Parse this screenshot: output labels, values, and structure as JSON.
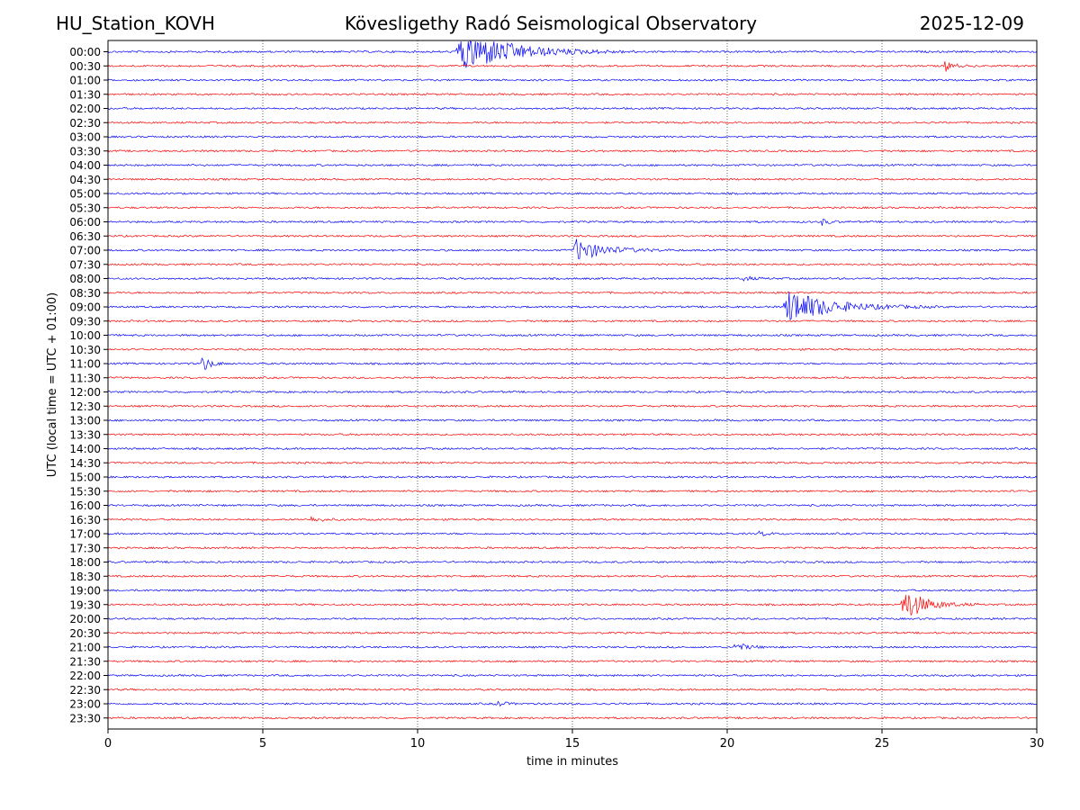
{
  "header": {
    "station": "HU_Station_KOVH",
    "title": "Kövesligethy Radó Seismological Observatory",
    "date": "2025-12-09"
  },
  "chart_data": {
    "type": "line",
    "title": "Kövesligethy Radó Seismological Observatory",
    "xlabel": "time in minutes",
    "ylabel": "UTC (local time = UTC + 01:00)",
    "xlim": [
      0,
      30
    ],
    "xticks": [
      0,
      5,
      10,
      15,
      20,
      25,
      30
    ],
    "grid": "vertical dotted lines at x ticks",
    "colors": [
      "#0000ff",
      "#ff0000"
    ],
    "rows": [
      "00:00",
      "00:30",
      "01:00",
      "01:30",
      "02:00",
      "02:30",
      "03:00",
      "03:30",
      "04:00",
      "04:30",
      "05:00",
      "05:30",
      "06:00",
      "06:30",
      "07:00",
      "07:30",
      "08:00",
      "08:30",
      "09:00",
      "09:30",
      "10:00",
      "10:30",
      "11:00",
      "11:30",
      "12:00",
      "12:30",
      "13:00",
      "13:30",
      "14:00",
      "14:30",
      "15:00",
      "15:30",
      "16:00",
      "16:30",
      "17:00",
      "17:30",
      "18:00",
      "18:30",
      "19:00",
      "19:30",
      "20:00",
      "20:30",
      "21:00",
      "21:30",
      "22:00",
      "22:30",
      "23:00",
      "23:30"
    ],
    "events": [
      {
        "row": 0,
        "start_min": 11.2,
        "peak": 1.0,
        "duration_min": 6.0
      },
      {
        "row": 1,
        "start_min": 27.0,
        "peak": 0.25,
        "duration_min": 1.0
      },
      {
        "row": 14,
        "start_min": 15.0,
        "peak": 0.5,
        "duration_min": 3.5
      },
      {
        "row": 18,
        "start_min": 21.8,
        "peak": 0.8,
        "duration_min": 5.0
      },
      {
        "row": 22,
        "start_min": 3.0,
        "peak": 0.4,
        "duration_min": 1.0
      },
      {
        "row": 39,
        "start_min": 25.6,
        "peak": 0.8,
        "duration_min": 2.5
      },
      {
        "row": 42,
        "start_min": 20.2,
        "peak": 0.2,
        "duration_min": 1.5
      },
      {
        "row": 46,
        "start_min": 12.5,
        "peak": 0.15,
        "duration_min": 1.0
      },
      {
        "row": 12,
        "start_min": 23.0,
        "peak": 0.15,
        "duration_min": 1.0
      },
      {
        "row": 16,
        "start_min": 20.5,
        "peak": 0.12,
        "duration_min": 1.0
      },
      {
        "row": 34,
        "start_min": 21.0,
        "peak": 0.12,
        "duration_min": 1.0
      },
      {
        "row": 33,
        "start_min": 6.5,
        "peak": 0.12,
        "duration_min": 1.5
      }
    ]
  }
}
